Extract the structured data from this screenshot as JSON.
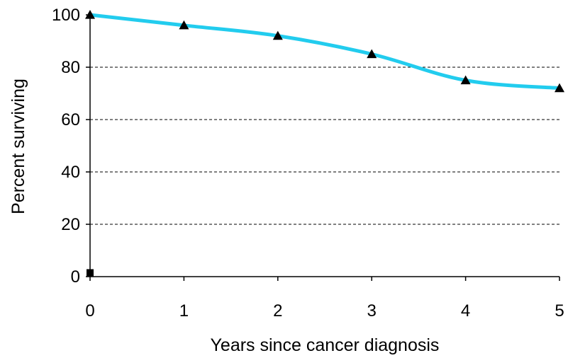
{
  "chart_data": {
    "type": "line",
    "title": "",
    "xlabel": "Years since cancer diagnosis",
    "ylabel": "Percent surviving",
    "xlim": [
      0,
      5
    ],
    "ylim": [
      0,
      100
    ],
    "x_ticks": [
      "0",
      "1",
      "2",
      "3",
      "4",
      "5"
    ],
    "y_ticks": [
      "0",
      "20",
      "40",
      "60",
      "80",
      "100"
    ],
    "grid": "horizontal dashed",
    "legend": "none",
    "series": [
      {
        "x": [
          0,
          1,
          2,
          3,
          4,
          5
        ],
        "values": [
          100,
          96,
          92,
          85,
          75,
          72
        ],
        "color": "#22ccee",
        "marker": "triangle",
        "marker_color": "#000000"
      }
    ],
    "extra_points": [
      {
        "x": 0,
        "y": 1.5,
        "marker": "square",
        "color": "#000000"
      }
    ]
  }
}
